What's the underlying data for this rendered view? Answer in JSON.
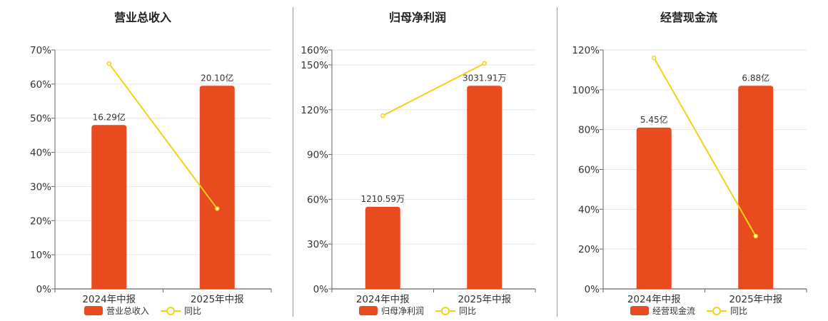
{
  "colors": {
    "bar": "#E84C1E",
    "line": "#F2D21B",
    "grid": "#E6E6E6",
    "axis": "#666666"
  },
  "chart_data": [
    {
      "type": "bar+line",
      "title": "营业总收入",
      "categories": [
        "2024年中报",
        "2025年中报"
      ],
      "ylim": [
        0,
        70
      ],
      "yticks": [
        "0%",
        "10%",
        "20%",
        "30%",
        "40%",
        "50%",
        "60%",
        "70%"
      ],
      "ytick_values": [
        0,
        10,
        20,
        30,
        40,
        50,
        60,
        70
      ],
      "series": [
        {
          "name": "营业总收入",
          "kind": "bar",
          "values": [
            48,
            59.5
          ],
          "labels": [
            "16.29亿",
            "20.10亿"
          ]
        },
        {
          "name": "同比",
          "kind": "line",
          "values": [
            66,
            23.5
          ]
        }
      ],
      "legend": "bottom"
    },
    {
      "type": "bar+line",
      "title": "归母净利润",
      "categories": [
        "2024年中报",
        "2025年中报"
      ],
      "ylim": [
        0,
        160
      ],
      "yticks": [
        "0%",
        "30%",
        "60%",
        "90%",
        "120%",
        "150%",
        "160%"
      ],
      "ytick_values": [
        0,
        30,
        60,
        90,
        120,
        150,
        160
      ],
      "series": [
        {
          "name": "归母净利润",
          "kind": "bar",
          "values": [
            55,
            136
          ],
          "labels": [
            "1210.59万",
            "3031.91万"
          ]
        },
        {
          "name": "同比",
          "kind": "line",
          "values": [
            116,
            151
          ]
        }
      ],
      "legend": "bottom"
    },
    {
      "type": "bar+line",
      "title": "经营现金流",
      "categories": [
        "2024年中报",
        "2025年中报"
      ],
      "ylim": [
        0,
        120
      ],
      "yticks": [
        "0%",
        "20%",
        "40%",
        "60%",
        "80%",
        "100%",
        "120%"
      ],
      "ytick_values": [
        0,
        20,
        40,
        60,
        80,
        100,
        120
      ],
      "series": [
        {
          "name": "经营现金流",
          "kind": "bar",
          "values": [
            81,
            102
          ],
          "labels": [
            "5.45亿",
            "6.88亿"
          ]
        },
        {
          "name": "同比",
          "kind": "line",
          "values": [
            116,
            26.5
          ]
        }
      ],
      "legend": "bottom"
    }
  ]
}
